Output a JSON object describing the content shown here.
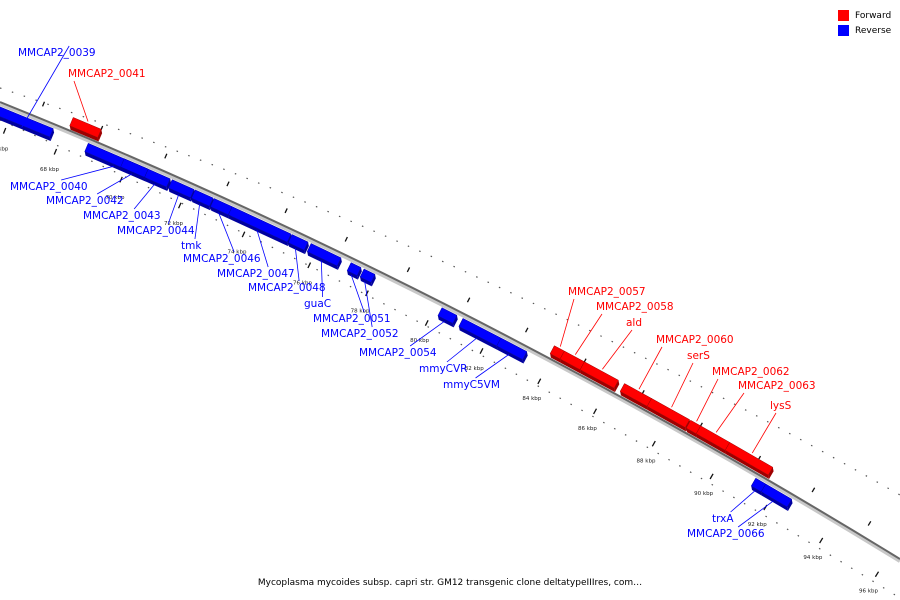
{
  "legend": {
    "forward_label": "Forward",
    "reverse_label": "Reverse",
    "forward_color": "#ff0000",
    "reverse_color": "#0000ff"
  },
  "caption": "Mycoplasma mycoides subsp. capri str. GM12 transgenic clone deltatypeIIIres, com…",
  "axis_ticks": [
    "66 kbp",
    "68 kbp",
    "70 kbp",
    "72 kbp",
    "74 kbp",
    "76 kbp",
    "78 kbp",
    "80 kbp",
    "82 kbp",
    "84 kbp",
    "86 kbp",
    "88 kbp",
    "90 kbp",
    "92 kbp",
    "94 kbp",
    "96 kbp"
  ],
  "genes": [
    {
      "label": "MMCAP2_0039",
      "strand": "reverse"
    },
    {
      "label": "MMCAP2_0041",
      "strand": "forward"
    },
    {
      "label": "MMCAP2_0040",
      "strand": "reverse"
    },
    {
      "label": "MMCAP2_0042",
      "strand": "reverse"
    },
    {
      "label": "MMCAP2_0043",
      "strand": "reverse"
    },
    {
      "label": "MMCAP2_0044",
      "strand": "reverse"
    },
    {
      "label": "tmk",
      "strand": "reverse"
    },
    {
      "label": "MMCAP2_0046",
      "strand": "reverse"
    },
    {
      "label": "MMCAP2_0047",
      "strand": "reverse"
    },
    {
      "label": "MMCAP2_0048",
      "strand": "reverse"
    },
    {
      "label": "guaC",
      "strand": "reverse"
    },
    {
      "label": "MMCAP2_0051",
      "strand": "reverse"
    },
    {
      "label": "MMCAP2_0052",
      "strand": "reverse"
    },
    {
      "label": "MMCAP2_0054",
      "strand": "reverse"
    },
    {
      "label": "mmyCVR",
      "strand": "reverse"
    },
    {
      "label": "mmyC5VM",
      "strand": "reverse"
    },
    {
      "label": "MMCAP2_0057",
      "strand": "forward"
    },
    {
      "label": "MMCAP2_0058",
      "strand": "forward"
    },
    {
      "label": "ald",
      "strand": "forward"
    },
    {
      "label": "MMCAP2_0060",
      "strand": "forward"
    },
    {
      "label": "serS",
      "strand": "forward"
    },
    {
      "label": "MMCAP2_0062",
      "strand": "forward"
    },
    {
      "label": "MMCAP2_0063",
      "strand": "forward"
    },
    {
      "label": "lysS",
      "strand": "forward"
    },
    {
      "label": "trxA",
      "strand": "reverse"
    },
    {
      "label": "MMCAP2_0066",
      "strand": "reverse"
    }
  ]
}
